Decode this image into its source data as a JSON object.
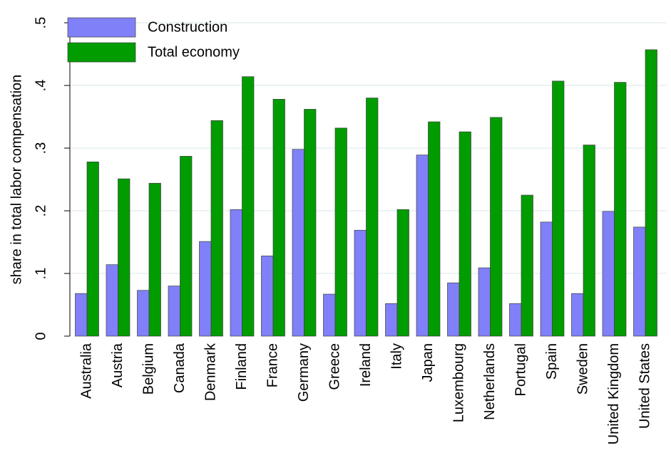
{
  "chart_data": {
    "type": "bar",
    "y_label": "share in total labor compensation",
    "categories": [
      "Australia",
      "Austria",
      "Belgium",
      "Canada",
      "Denmark",
      "Finland",
      "France",
      "Germany",
      "Greece",
      "Ireland",
      "Italy",
      "Japan",
      "Luxembourg",
      "Netherlands",
      "Portugal",
      "Spain",
      "Sweden",
      "United Kingdom",
      "United States"
    ],
    "series": [
      {
        "name": "Construction",
        "color": "#8080f8",
        "values": [
          0.068,
          0.114,
          0.073,
          0.08,
          0.151,
          0.202,
          0.128,
          0.298,
          0.067,
          0.169,
          0.052,
          0.289,
          0.085,
          0.109,
          0.052,
          0.182,
          0.068,
          0.199,
          0.174
        ]
      },
      {
        "name": "Total economy",
        "color": "#009c00",
        "values": [
          0.278,
          0.251,
          0.244,
          0.287,
          0.344,
          0.414,
          0.378,
          0.362,
          0.332,
          0.38,
          0.202,
          0.342,
          0.326,
          0.349,
          0.225,
          0.407,
          0.305,
          0.405,
          0.457
        ]
      }
    ],
    "ylim": [
      0,
      0.5
    ],
    "yticks": [
      0,
      {
        "value": 0.1,
        "label": ".1"
      },
      {
        "value": 0.2,
        "label": ".2"
      },
      {
        "value": 0.3,
        "label": ".3"
      },
      {
        "value": 0.4,
        "label": ".4"
      },
      {
        "value": 0.5,
        "label": ".5"
      }
    ],
    "grid": true,
    "legend": "top-left"
  }
}
